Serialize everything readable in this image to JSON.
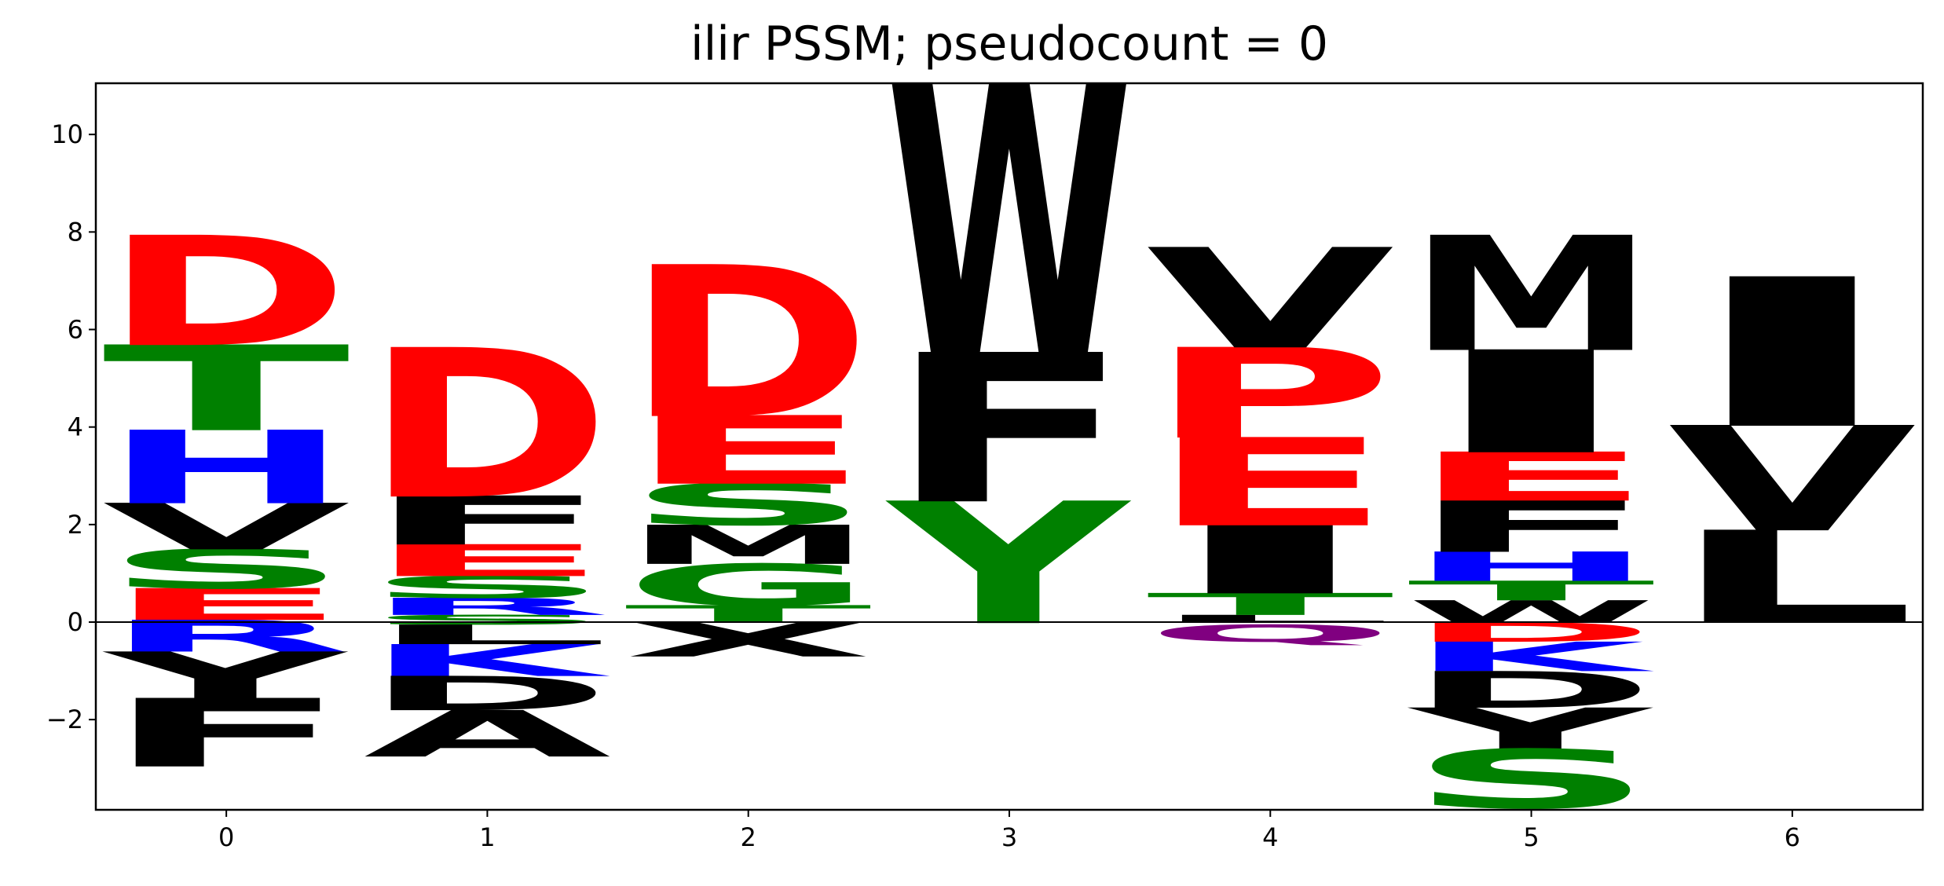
{
  "chart_data": {
    "type": "logo",
    "title": "ilir PSSM; pseudocount = 0",
    "xlabel": "",
    "ylabel": "",
    "xlim": [
      -0.5,
      6.5
    ],
    "ylim": [
      -3.85,
      11.05
    ],
    "x_ticks": [
      0,
      1,
      2,
      3,
      4,
      5,
      6
    ],
    "y_ticks": [
      {
        "value": -2,
        "label": "−2"
      },
      {
        "value": 0,
        "label": "0"
      },
      {
        "value": 2,
        "label": "2"
      },
      {
        "value": 4,
        "label": "4"
      },
      {
        "value": 6,
        "label": "6"
      },
      {
        "value": 8,
        "label": "8"
      },
      {
        "value": 10,
        "label": "10"
      }
    ],
    "grid": false,
    "colors": {
      "red": "#ff0000",
      "green": "#008000",
      "blue": "#0000ff",
      "black": "#000000",
      "purple": "#800080"
    },
    "positions": [
      {
        "x": 0,
        "letters": [
          {
            "char": "E",
            "y0": 0.05,
            "y1": 0.7,
            "color": "#ff0000"
          },
          {
            "char": "S",
            "y0": 0.7,
            "y1": 1.5,
            "color": "#008000"
          },
          {
            "char": "V",
            "y0": 1.5,
            "y1": 2.45,
            "color": "#000000"
          },
          {
            "char": "H",
            "y0": 2.45,
            "y1": 3.95,
            "color": "#0000ff"
          },
          {
            "char": "T",
            "y0": 3.95,
            "y1": 5.7,
            "color": "#008000"
          },
          {
            "char": "D",
            "y0": 5.7,
            "y1": 7.95,
            "color": "#ff0000"
          },
          {
            "char": "R",
            "y0": -0.6,
            "y1": 0.05,
            "color": "#0000ff"
          },
          {
            "char": "Y",
            "y0": -1.55,
            "y1": -0.6,
            "color": "#000000"
          },
          {
            "char": "F",
            "y0": -2.95,
            "y1": -1.55,
            "color": "#000000"
          }
        ]
      },
      {
        "x": 1,
        "letters": [
          {
            "char": "S",
            "y0": -0.05,
            "y1": 0.15,
            "color": "#008000"
          },
          {
            "char": "R",
            "y0": 0.15,
            "y1": 0.5,
            "color": "#0000ff"
          },
          {
            "char": "S",
            "y0": 0.5,
            "y1": 0.95,
            "color": "#008000"
          },
          {
            "char": "E",
            "y0": 0.95,
            "y1": 1.6,
            "color": "#ff0000"
          },
          {
            "char": "F",
            "y0": 1.6,
            "y1": 2.6,
            "color": "#000000"
          },
          {
            "char": "D",
            "y0": 2.6,
            "y1": 5.65,
            "color": "#ff0000"
          },
          {
            "char": "L",
            "y0": -0.45,
            "y1": -0.05,
            "color": "#000000"
          },
          {
            "char": "K",
            "y0": -1.1,
            "y1": -0.45,
            "color": "#0000ff"
          },
          {
            "char": "D",
            "y0": -1.8,
            "y1": -1.1,
            "color": "#000000"
          },
          {
            "char": "A",
            "y0": -2.75,
            "y1": -1.8,
            "color": "#000000"
          }
        ]
      },
      {
        "x": 2,
        "letters": [
          {
            "char": "T",
            "y0": 0.0,
            "y1": 0.35,
            "color": "#008000"
          },
          {
            "char": "G",
            "y0": 0.35,
            "y1": 1.2,
            "color": "#008000"
          },
          {
            "char": "M",
            "y0": 1.2,
            "y1": 2.0,
            "color": "#000000"
          },
          {
            "char": "S",
            "y0": 2.0,
            "y1": 2.85,
            "color": "#008000"
          },
          {
            "char": "E",
            "y0": 2.85,
            "y1": 4.25,
            "color": "#ff0000"
          },
          {
            "char": "D",
            "y0": 4.25,
            "y1": 7.35,
            "color": "#ff0000"
          },
          {
            "char": "X",
            "y0": -0.7,
            "y1": 0.0,
            "color": "#000000"
          }
        ]
      },
      {
        "x": 3,
        "letters": [
          {
            "char": "Y",
            "y0": 0.0,
            "y1": 2.5,
            "color": "#008000"
          },
          {
            "char": "F",
            "y0": 2.5,
            "y1": 5.55,
            "color": "#000000"
          },
          {
            "char": "W",
            "y0": 5.55,
            "y1": 11.05,
            "color": "#000000"
          }
        ]
      },
      {
        "x": 4,
        "letters": [
          {
            "char": "L",
            "y0": 0.0,
            "y1": 0.15,
            "color": "#000000"
          },
          {
            "char": "T",
            "y0": 0.15,
            "y1": 0.6,
            "color": "#008000"
          },
          {
            "char": "I",
            "y0": 0.6,
            "y1": 2.0,
            "color": "#000000"
          },
          {
            "char": "E",
            "y0": 2.0,
            "y1": 3.8,
            "color": "#ff0000"
          },
          {
            "char": "P",
            "y0": 3.8,
            "y1": 5.65,
            "color": "#ff0000"
          },
          {
            "char": "V",
            "y0": 5.65,
            "y1": 7.7,
            "color": "#000000"
          },
          {
            "char": "Q",
            "y0": -0.4,
            "y1": -0.05,
            "color": "#800080"
          }
        ]
      },
      {
        "x": 5,
        "letters": [
          {
            "char": "W",
            "y0": 0.0,
            "y1": 0.45,
            "color": "#000000"
          },
          {
            "char": "T",
            "y0": 0.45,
            "y1": 0.85,
            "color": "#008000"
          },
          {
            "char": "H",
            "y0": 0.85,
            "y1": 1.45,
            "color": "#0000ff"
          },
          {
            "char": "F",
            "y0": 1.45,
            "y1": 2.5,
            "color": "#000000"
          },
          {
            "char": "E",
            "y0": 2.5,
            "y1": 3.5,
            "color": "#ff0000"
          },
          {
            "char": "I",
            "y0": 3.5,
            "y1": 5.6,
            "color": "#000000"
          },
          {
            "char": "M",
            "y0": 5.6,
            "y1": 7.95,
            "color": "#000000"
          },
          {
            "char": "D",
            "y0": -0.4,
            "y1": 0.0,
            "color": "#ff0000"
          },
          {
            "char": "K",
            "y0": -1.0,
            "y1": -0.4,
            "color": "#0000ff"
          },
          {
            "char": "D",
            "y0": -1.75,
            "y1": -1.0,
            "color": "#000000"
          },
          {
            "char": "Y",
            "y0": -2.6,
            "y1": -1.75,
            "color": "#000000"
          },
          {
            "char": "S",
            "y0": -3.8,
            "y1": -2.6,
            "color": "#008000"
          }
        ]
      },
      {
        "x": 6,
        "letters": [
          {
            "char": "L",
            "y0": 0.0,
            "y1": 1.9,
            "color": "#000000"
          },
          {
            "char": "V",
            "y0": 1.9,
            "y1": 4.05,
            "color": "#000000"
          },
          {
            "char": "I",
            "y0": 4.05,
            "y1": 7.1,
            "color": "#000000"
          }
        ]
      }
    ]
  }
}
